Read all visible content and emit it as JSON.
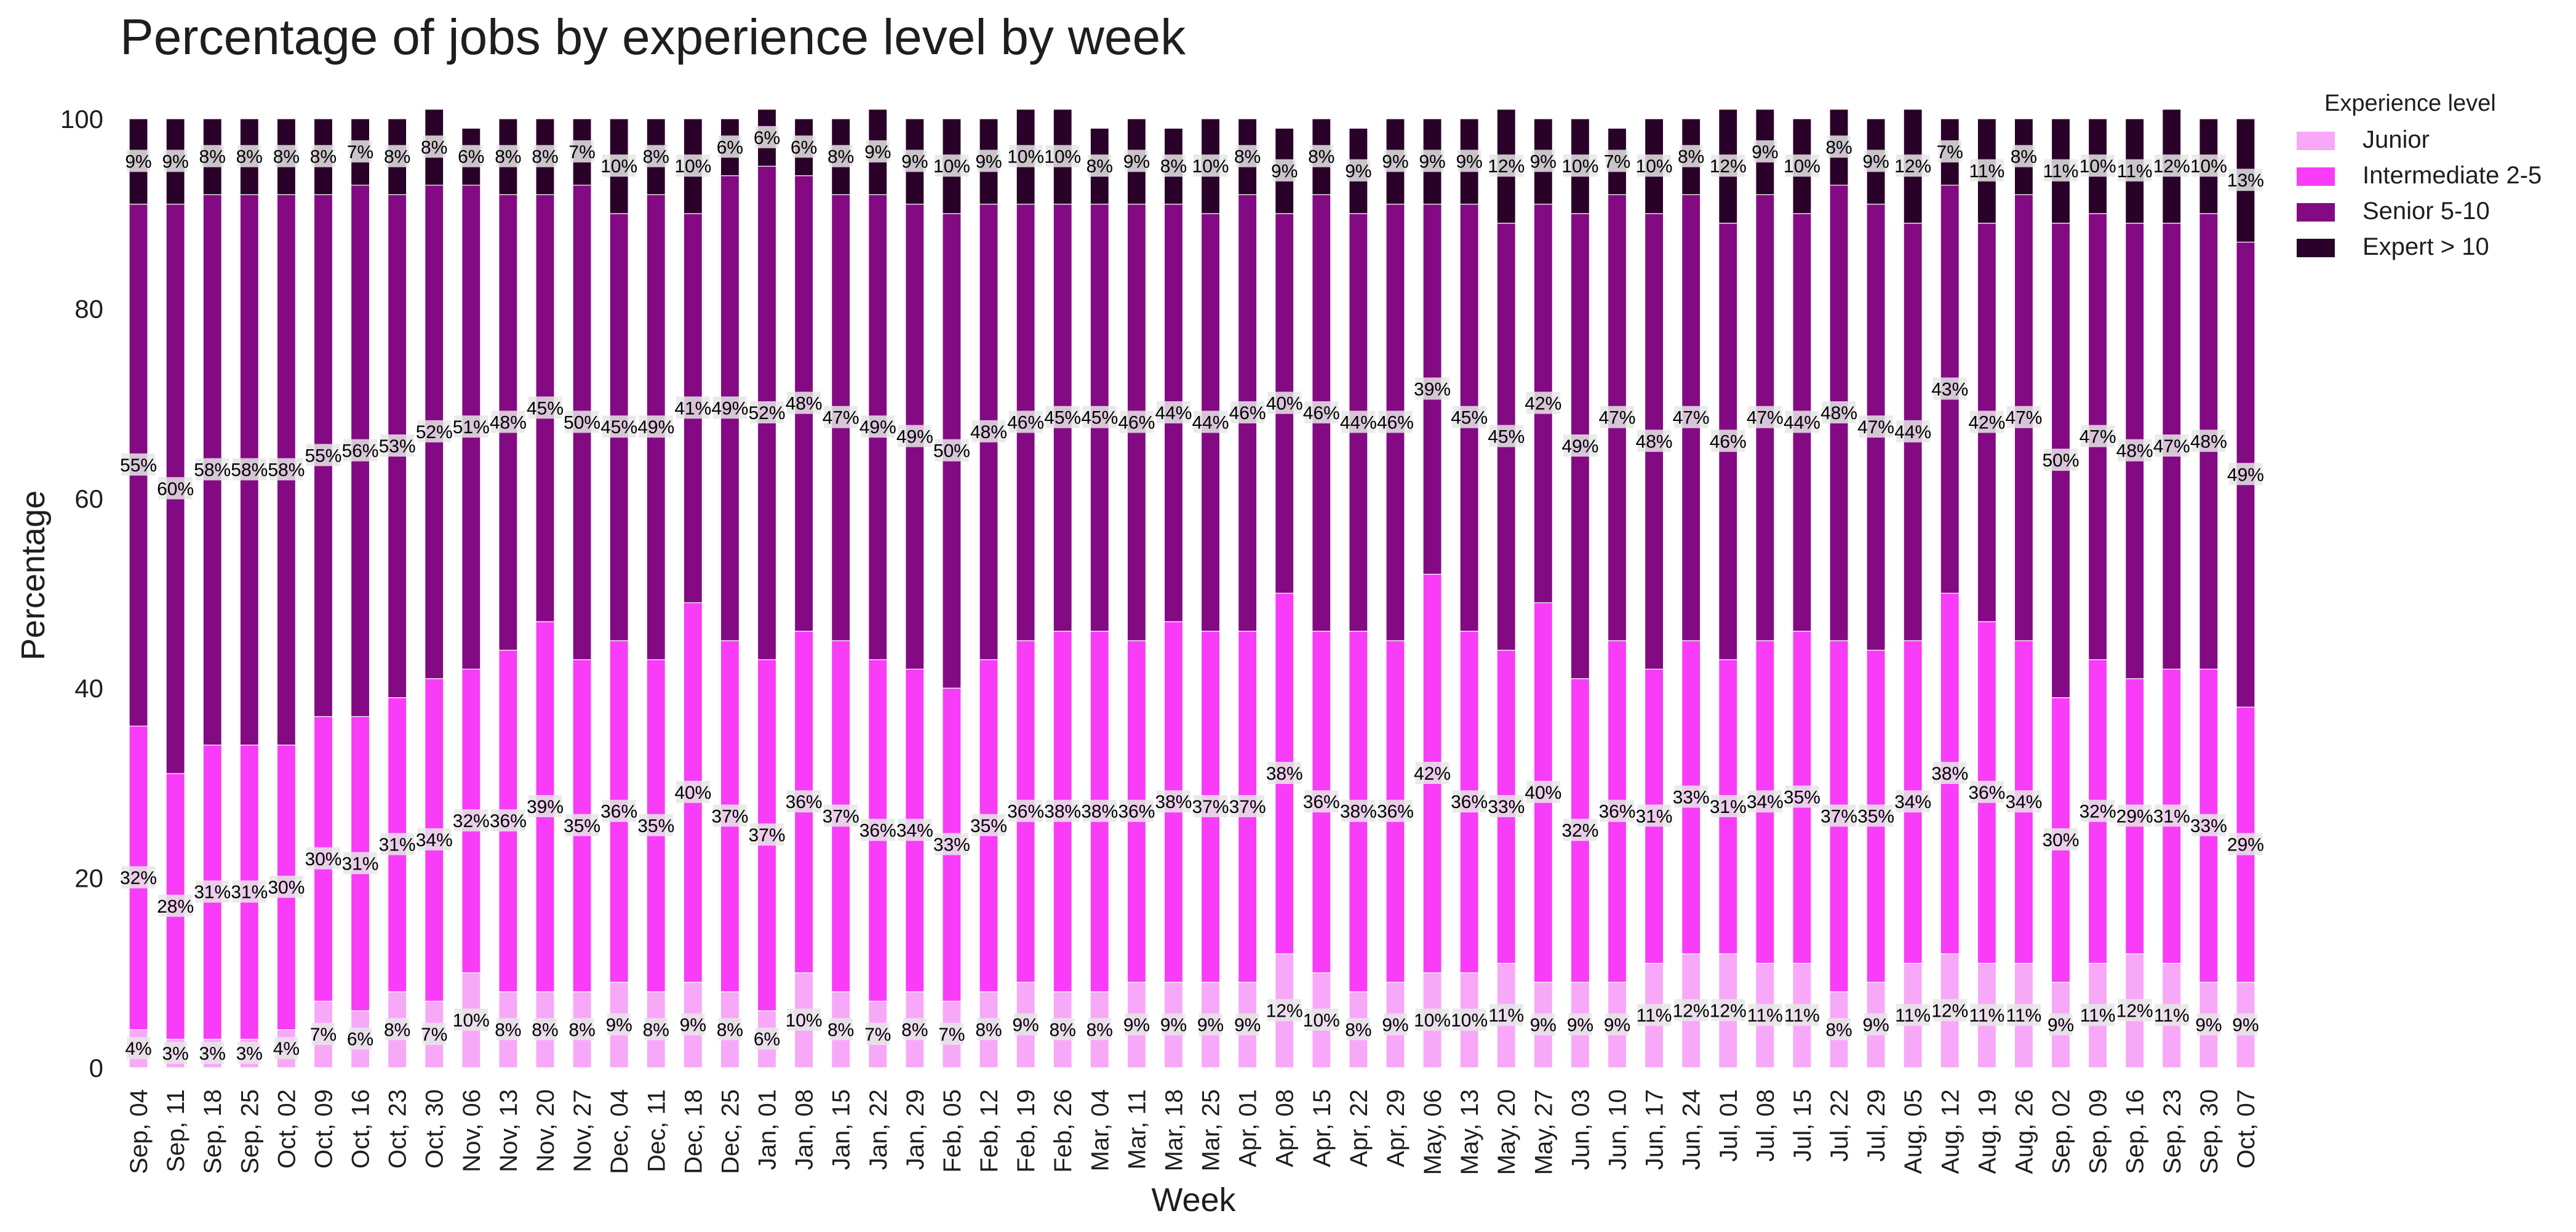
{
  "chart_data": {
    "type": "bar",
    "stacked": true,
    "title": "Percentage of jobs by experience level by week",
    "xlabel": "Week",
    "ylabel": "Percentage",
    "ylim": [
      0,
      100
    ],
    "yticks": [
      "0",
      "20",
      "40",
      "60",
      "80",
      "100"
    ],
    "grid": false,
    "legend": {
      "title": "Experience level",
      "placement": "top-right"
    },
    "categories": [
      "Sep, 04",
      "Sep, 11",
      "Sep, 18",
      "Sep, 25",
      "Oct, 02",
      "Oct, 09",
      "Oct, 16",
      "Oct, 23",
      "Oct, 30",
      "Nov, 06",
      "Nov, 13",
      "Nov, 20",
      "Nov, 27",
      "Dec, 04",
      "Dec, 11",
      "Dec, 18",
      "Dec, 25",
      "Jan, 01",
      "Jan, 08",
      "Jan, 15",
      "Jan, 22",
      "Jan, 29",
      "Feb, 05",
      "Feb, 12",
      "Feb, 19",
      "Feb, 26",
      "Mar, 04",
      "Mar, 11",
      "Mar, 18",
      "Mar, 25",
      "Apr, 01",
      "Apr, 08",
      "Apr, 15",
      "Apr, 22",
      "Apr, 29",
      "May, 06",
      "May, 13",
      "May, 20",
      "May, 27",
      "Jun, 03",
      "Jun, 10",
      "Jun, 17",
      "Jun, 24",
      "Jul, 01",
      "Jul, 08",
      "Jul, 15",
      "Jul, 22",
      "Jul, 29",
      "Aug, 05",
      "Aug, 12",
      "Aug, 19",
      "Aug, 26",
      "Sep, 02",
      "Sep, 09",
      "Sep, 16",
      "Sep, 23",
      "Sep, 30",
      "Oct, 07"
    ],
    "series": [
      {
        "name": "Junior",
        "color": "#f8a8f8",
        "values": [
          4,
          3,
          3,
          3,
          4,
          7,
          6,
          8,
          7,
          10,
          8,
          8,
          8,
          9,
          8,
          9,
          8,
          6,
          10,
          8,
          7,
          8,
          7,
          8,
          9,
          8,
          8,
          9,
          9,
          9,
          9,
          12,
          10,
          8,
          9,
          10,
          10,
          11,
          9,
          9,
          9,
          11,
          12,
          12,
          11,
          11,
          8,
          9,
          11,
          12,
          11,
          11,
          9,
          11,
          12,
          11,
          9,
          9
        ]
      },
      {
        "name": "Intermediate 2-5",
        "color": "#f83cf8",
        "values": [
          32,
          28,
          31,
          31,
          30,
          30,
          31,
          31,
          34,
          32,
          36,
          39,
          35,
          36,
          35,
          40,
          37,
          37,
          36,
          37,
          36,
          34,
          33,
          35,
          36,
          38,
          38,
          36,
          38,
          37,
          37,
          38,
          36,
          38,
          36,
          42,
          36,
          33,
          40,
          32,
          36,
          31,
          33,
          31,
          34,
          35,
          37,
          35,
          34,
          38,
          36,
          34,
          30,
          32,
          29,
          31,
          33,
          29
        ]
      },
      {
        "name": "Senior 5-10",
        "color": "#830a83",
        "values": [
          55,
          60,
          58,
          58,
          58,
          55,
          56,
          53,
          52,
          51,
          48,
          45,
          50,
          45,
          49,
          41,
          49,
          52,
          48,
          47,
          49,
          49,
          50,
          48,
          46,
          45,
          45,
          46,
          44,
          44,
          46,
          40,
          46,
          44,
          46,
          39,
          45,
          45,
          42,
          49,
          47,
          48,
          47,
          46,
          47,
          44,
          48,
          47,
          44,
          43,
          42,
          47,
          50,
          47,
          48,
          47,
          48,
          49
        ]
      },
      {
        "name": "Expert > 10",
        "color": "#2a0128",
        "values": [
          9,
          9,
          8,
          8,
          8,
          8,
          7,
          8,
          8,
          6,
          8,
          8,
          7,
          10,
          8,
          10,
          6,
          6,
          6,
          8,
          9,
          9,
          10,
          9,
          10,
          10,
          8,
          9,
          8,
          10,
          8,
          9,
          8,
          9,
          9,
          9,
          9,
          12,
          9,
          10,
          7,
          10,
          8,
          12,
          9,
          10,
          8,
          9,
          12,
          7,
          11,
          8,
          11,
          10,
          11,
          12,
          10,
          13
        ]
      }
    ],
    "labels": [
      [
        "4%",
        "3%",
        "3%",
        "3%",
        "4%",
        "7%",
        "6%",
        "8%",
        "7%",
        "10%",
        "8%",
        "8%",
        "8%",
        "9%",
        "8%",
        "9%",
        "8%",
        "6%",
        "10%",
        "8%",
        "7%",
        "8%",
        "7%",
        "8%",
        "9%",
        "8%",
        "8%",
        "9%",
        "9%",
        "9%",
        "9%",
        "12%",
        "10%",
        "8%",
        "9%",
        "10%",
        "10%",
        "11%",
        "9%",
        "9%",
        "9%",
        "11%",
        "12%",
        "12%",
        "11%",
        "11%",
        "8%",
        "9%",
        "11%",
        "12%",
        "11%",
        "11%",
        "9%",
        "11%",
        "12%",
        "11%",
        "9%",
        "9%"
      ],
      [
        "32%",
        "28%",
        "31%",
        "31%",
        "30%",
        "30%",
        "31%",
        "31%",
        "34%",
        "32%",
        "36%",
        "39%",
        "35%",
        "36%",
        "35%",
        "40%",
        "37%",
        "37%",
        "36%",
        "37%",
        "36%",
        "34%",
        "33%",
        "35%",
        "36%",
        "38%",
        "38%",
        "36%",
        "38%",
        "37%",
        "37%",
        "38%",
        "36%",
        "38%",
        "36%",
        "42%",
        "36%",
        "33%",
        "40%",
        "32%",
        "36%",
        "31%",
        "33%",
        "31%",
        "34%",
        "35%",
        "37%",
        "35%",
        "34%",
        "38%",
        "36%",
        "34%",
        "30%",
        "32%",
        "29%",
        "31%",
        "33%",
        "29%"
      ],
      [
        "55%",
        "60%",
        "58%",
        "58%",
        "58%",
        "55%",
        "56%",
        "53%",
        "52%",
        "51%",
        "48%",
        "45%",
        "50%",
        "45%",
        "49%",
        "41%",
        "49%",
        "52%",
        "48%",
        "47%",
        "49%",
        "49%",
        "50%",
        "48%",
        "46%",
        "45%",
        "45%",
        "46%",
        "44%",
        "44%",
        "46%",
        "40%",
        "46%",
        "44%",
        "46%",
        "39%",
        "45%",
        "45%",
        "42%",
        "49%",
        "47%",
        "48%",
        "47%",
        "46%",
        "47%",
        "44%",
        "48%",
        "47%",
        "44%",
        "43%",
        "42%",
        "47%",
        "50%",
        "47%",
        "48%",
        "47%",
        "48%",
        "49%"
      ],
      [
        "9%",
        "9%",
        "8%",
        "8%",
        "8%",
        "8%",
        "7%",
        "8%",
        "8%",
        "6%",
        "8%",
        "8%",
        "7%",
        "10%",
        "8%",
        "10%",
        "6%",
        "6%",
        "6%",
        "8%",
        "9%",
        "9%",
        "10%",
        "9%",
        "10%",
        "10%",
        "8%",
        "9%",
        "8%",
        "10%",
        "8%",
        "9%",
        "8%",
        "9%",
        "9%",
        "9%",
        "9%",
        "12%",
        "9%",
        "10%",
        "7%",
        "10%",
        "8%",
        "12%",
        "9%",
        "10%",
        "8%",
        "9%",
        "12%",
        "7%",
        "11%",
        "8%",
        "11%",
        "10%",
        "11%",
        "12%",
        "10%",
        "13%"
      ]
    ]
  }
}
